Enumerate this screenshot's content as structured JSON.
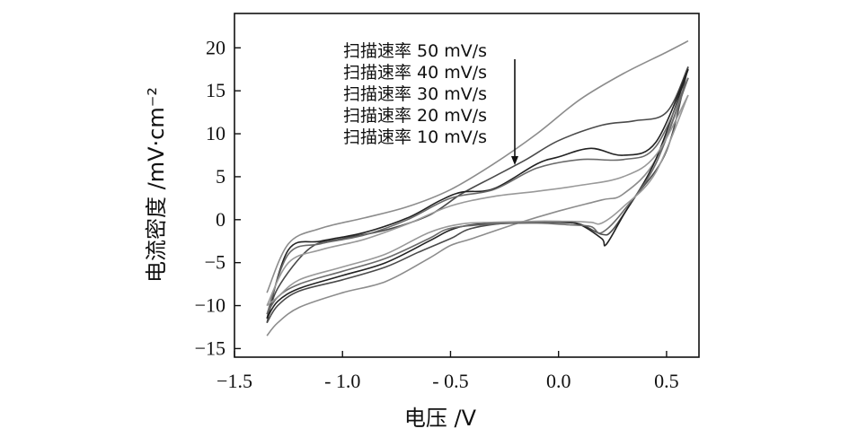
{
  "chart_data": {
    "type": "line",
    "title": "",
    "xlabel": "电压 /V",
    "ylabel": "电流密度 /mV·cm⁻²",
    "xlim": [
      -1.5,
      0.65
    ],
    "ylim": [
      -16,
      24
    ],
    "xticks": [
      -1.5,
      -1.0,
      -0.5,
      0.0,
      0.5
    ],
    "xtick_labels": [
      "−1.5",
      "- 1.0",
      "- 0.5",
      "0.0",
      "0.5"
    ],
    "yticks": [
      -15,
      -10,
      -5,
      0,
      5,
      10,
      15,
      20
    ],
    "ytick_labels": [
      "−15",
      "−10",
      "−5",
      "0",
      "5",
      "10",
      "15",
      "20"
    ],
    "grid": false,
    "legend_position": "top-center",
    "legend_arrow": "pointing down from 50 mV/s to 10 mV/s",
    "series": [
      {
        "name": "扫描速率 50 mV/s",
        "color": "#8c8c8c",
        "forward": [
          [
            -1.35,
            -13.5
          ],
          [
            -1.3,
            -12.0
          ],
          [
            -1.2,
            -10.2
          ],
          [
            -1.0,
            -8.5
          ],
          [
            -0.8,
            -7.2
          ],
          [
            -0.6,
            -4.5
          ],
          [
            -0.5,
            -3.0
          ],
          [
            -0.4,
            -2.2
          ],
          [
            -0.2,
            -0.5
          ],
          [
            0.0,
            1.0
          ],
          [
            0.2,
            2.3
          ],
          [
            0.3,
            3.0
          ],
          [
            0.45,
            7.0
          ],
          [
            0.6,
            16.5
          ]
        ],
        "reverse": [
          [
            0.6,
            20.8
          ],
          [
            0.5,
            19.5
          ],
          [
            0.3,
            17.0
          ],
          [
            0.1,
            14.0
          ],
          [
            -0.1,
            10.0
          ],
          [
            -0.3,
            6.5
          ],
          [
            -0.5,
            3.5
          ],
          [
            -0.7,
            1.5
          ],
          [
            -0.9,
            0.2
          ],
          [
            -1.1,
            -1.0
          ],
          [
            -1.25,
            -2.8
          ],
          [
            -1.35,
            -8.5
          ]
        ]
      },
      {
        "name": "扫描速率 40 mV/s",
        "color": "#4a4a4a",
        "forward": [
          [
            -1.35,
            -12.0
          ],
          [
            -1.3,
            -10.0
          ],
          [
            -1.2,
            -8.3
          ],
          [
            -1.0,
            -7.0
          ],
          [
            -0.8,
            -5.5
          ],
          [
            -0.65,
            -3.8
          ],
          [
            -0.5,
            -2.2
          ],
          [
            -0.4,
            -1.0
          ],
          [
            -0.2,
            -0.3
          ],
          [
            0.0,
            -0.2
          ],
          [
            0.1,
            -0.5
          ],
          [
            0.2,
            -1.7
          ],
          [
            0.25,
            -1.2
          ],
          [
            0.35,
            2.5
          ],
          [
            0.5,
            8.0
          ],
          [
            0.6,
            17.8
          ]
        ],
        "reverse": [
          [
            0.6,
            17.8
          ],
          [
            0.5,
            12.5
          ],
          [
            0.35,
            11.5
          ],
          [
            0.2,
            11.0
          ],
          [
            0.0,
            9.2
          ],
          [
            -0.15,
            7.0
          ],
          [
            -0.3,
            5.0
          ],
          [
            -0.45,
            3.0
          ],
          [
            -0.6,
            0.5
          ],
          [
            -0.8,
            -1.2
          ],
          [
            -1.0,
            -2.2
          ],
          [
            -1.15,
            -3.3
          ],
          [
            -1.3,
            -8.0
          ],
          [
            -1.35,
            -12.0
          ]
        ]
      },
      {
        "name": "扫描速率 30 mV/s",
        "color": "#222222",
        "forward": [
          [
            -1.35,
            -11.5
          ],
          [
            -1.3,
            -9.5
          ],
          [
            -1.2,
            -8.0
          ],
          [
            -1.0,
            -6.5
          ],
          [
            -0.8,
            -5.0
          ],
          [
            -0.6,
            -2.5
          ],
          [
            -0.5,
            -1.2
          ],
          [
            -0.4,
            -0.6
          ],
          [
            -0.2,
            -0.3
          ],
          [
            0.0,
            -0.3
          ],
          [
            0.1,
            -0.6
          ],
          [
            0.2,
            -2.2
          ],
          [
            0.22,
            -2.9
          ],
          [
            0.3,
            0.5
          ],
          [
            0.45,
            7.0
          ],
          [
            0.6,
            17.5
          ]
        ],
        "reverse": [
          [
            0.6,
            17.5
          ],
          [
            0.45,
            9.0
          ],
          [
            0.3,
            7.5
          ],
          [
            0.15,
            8.3
          ],
          [
            0.0,
            7.3
          ],
          [
            -0.1,
            6.5
          ],
          [
            -0.3,
            3.6
          ],
          [
            -0.45,
            3.2
          ],
          [
            -0.55,
            2.2
          ],
          [
            -0.7,
            0.2
          ],
          [
            -0.9,
            -1.5
          ],
          [
            -1.1,
            -2.5
          ],
          [
            -1.25,
            -3.5
          ],
          [
            -1.35,
            -11.5
          ]
        ]
      },
      {
        "name": "扫描速率 20 mV/s",
        "color": "#6a6a6a",
        "forward": [
          [
            -1.35,
            -11.0
          ],
          [
            -1.3,
            -9.0
          ],
          [
            -1.2,
            -7.5
          ],
          [
            -1.0,
            -6.0
          ],
          [
            -0.8,
            -4.5
          ],
          [
            -0.6,
            -2.2
          ],
          [
            -0.5,
            -1.0
          ],
          [
            -0.3,
            -0.5
          ],
          [
            -0.1,
            -0.4
          ],
          [
            0.05,
            -0.6
          ],
          [
            0.15,
            -0.8
          ],
          [
            0.2,
            -1.5
          ],
          [
            0.3,
            1.0
          ],
          [
            0.45,
            6.5
          ],
          [
            0.6,
            16.5
          ]
        ],
        "reverse": [
          [
            0.6,
            16.5
          ],
          [
            0.45,
            8.5
          ],
          [
            0.3,
            7.0
          ],
          [
            0.1,
            7.0
          ],
          [
            -0.1,
            6.0
          ],
          [
            -0.3,
            3.5
          ],
          [
            -0.5,
            2.5
          ],
          [
            -0.7,
            0.0
          ],
          [
            -0.9,
            -1.8
          ],
          [
            -1.1,
            -2.8
          ],
          [
            -1.25,
            -4.0
          ],
          [
            -1.35,
            -11.0
          ]
        ]
      },
      {
        "name": "扫描速率 10 mV/s",
        "color": "#999999",
        "forward": [
          [
            -1.35,
            -10.0
          ],
          [
            -1.3,
            -9.0
          ],
          [
            -1.2,
            -7.0
          ],
          [
            -1.0,
            -5.5
          ],
          [
            -0.8,
            -4.0
          ],
          [
            -0.6,
            -1.5
          ],
          [
            -0.45,
            -0.5
          ],
          [
            -0.3,
            -0.3
          ],
          [
            -0.1,
            -0.2
          ],
          [
            0.05,
            -0.2
          ],
          [
            0.15,
            -0.3
          ],
          [
            0.2,
            -0.4
          ],
          [
            0.3,
            1.5
          ],
          [
            0.45,
            5.5
          ],
          [
            0.6,
            14.5
          ]
        ],
        "reverse": [
          [
            0.6,
            14.5
          ],
          [
            0.45,
            7.5
          ],
          [
            0.3,
            5.0
          ],
          [
            0.1,
            4.0
          ],
          [
            -0.1,
            3.3
          ],
          [
            -0.3,
            2.7
          ],
          [
            -0.5,
            1.6
          ],
          [
            -0.7,
            -0.5
          ],
          [
            -0.9,
            -2.3
          ],
          [
            -1.1,
            -3.5
          ],
          [
            -1.25,
            -5.0
          ],
          [
            -1.35,
            -10.0
          ]
        ]
      }
    ]
  }
}
